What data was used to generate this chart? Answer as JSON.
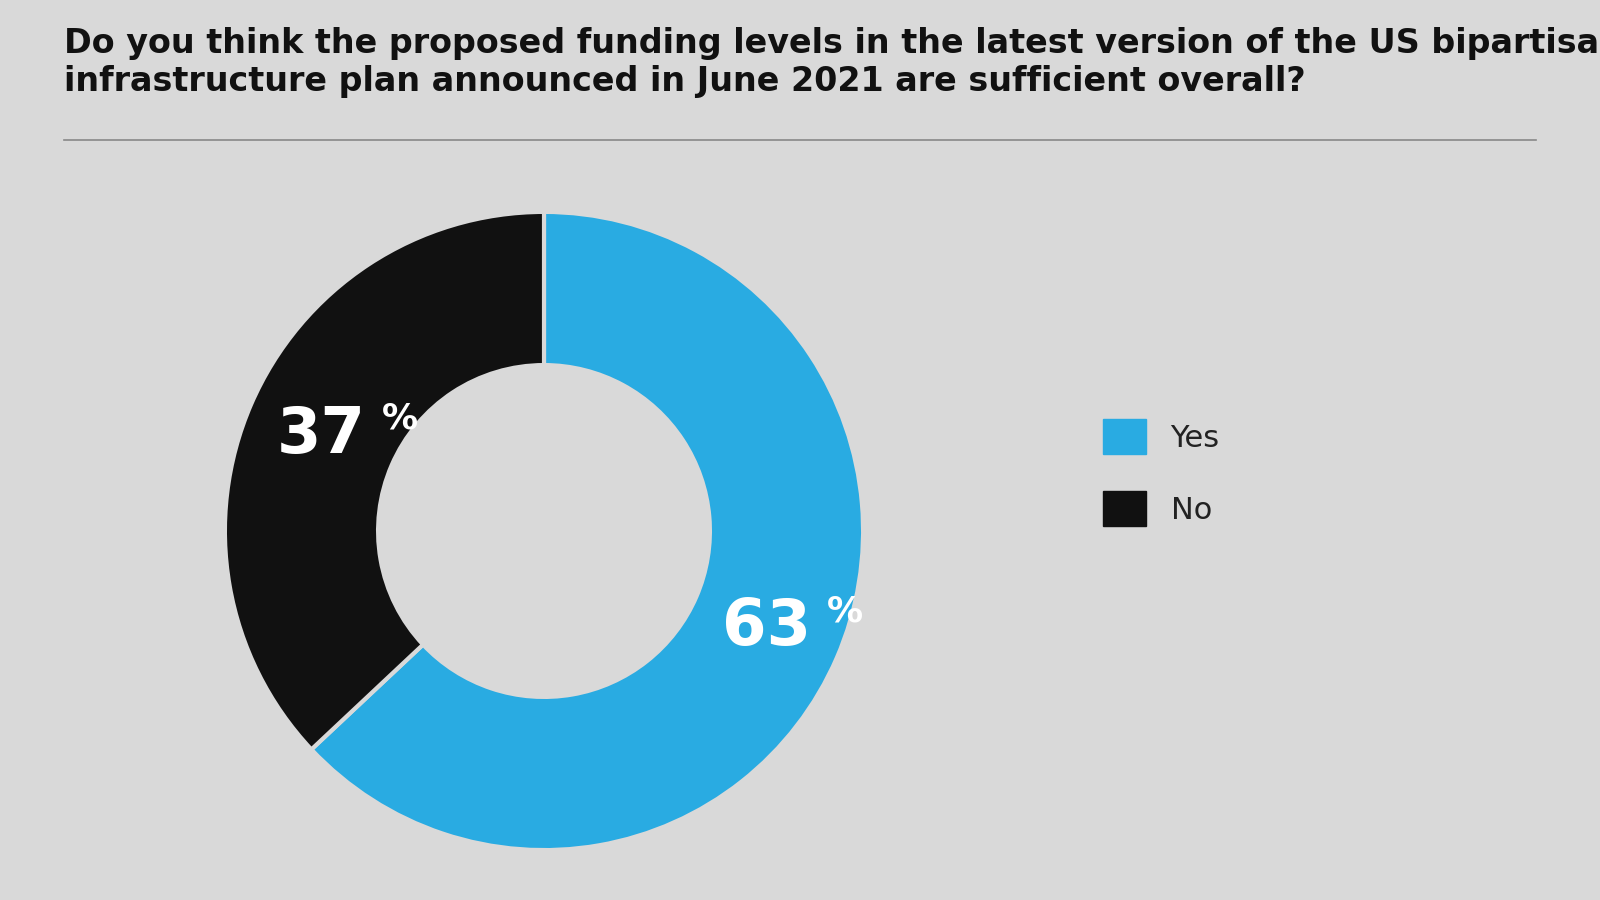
{
  "title": "Do you think the proposed funding levels in the latest version of the US bipartisan\ninfrastructure plan announced in June 2021 are sufficient overall?",
  "slices": [
    63,
    37
  ],
  "labels": [
    "Yes",
    "No"
  ],
  "colors": [
    "#29ABE2",
    "#111111"
  ],
  "legend_labels": [
    "Yes",
    "No"
  ],
  "background_color": "#d9d9d9",
  "title_fontsize": 24,
  "donut_width": 0.48,
  "text_fontsize_large": 46,
  "text_fontsize_small": 26,
  "line_color": "#888888"
}
